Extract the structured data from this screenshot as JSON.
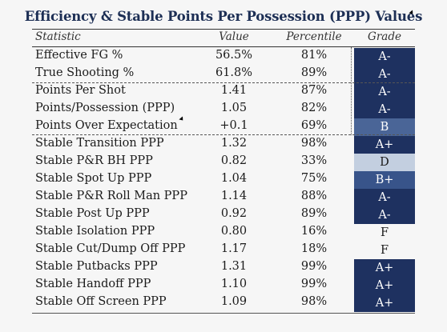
{
  "title": "Efficiency & Stable Points Per Possession (PPP) Values",
  "headers": {
    "statistic": "Statistic",
    "value": "Value",
    "percentile": "Percentile",
    "grade": "Grade"
  },
  "colors": {
    "navy": "#1e3160",
    "mid_blue": "#4a6597",
    "light_blue": "#c3cfe0",
    "white": "#f6f6f6"
  },
  "rows": [
    {
      "stat": "Effective FG %",
      "value": "56.5%",
      "percentile": "81%",
      "grade": "A-",
      "color": "#1e3160",
      "text": "#ffffff"
    },
    {
      "stat": "True Shooting %",
      "value": "61.8%",
      "percentile": "89%",
      "grade": "A-",
      "color": "#1e3160",
      "text": "#ffffff"
    },
    {
      "stat": "Points Per Shot",
      "value": "1.41",
      "percentile": "87%",
      "grade": "A-",
      "color": "#1e3160",
      "text": "#ffffff"
    },
    {
      "stat": "Points/Possession (PPP)",
      "value": "1.05",
      "percentile": "82%",
      "grade": "A-",
      "color": "#1e3160",
      "text": "#ffffff"
    },
    {
      "stat": "Points Over Expectation",
      "value": "+0.1",
      "percentile": "69%",
      "grade": "B",
      "color": "#4a6597",
      "text": "#ffffff"
    },
    {
      "stat": "Stable Transition PPP",
      "value": "1.32",
      "percentile": "98%",
      "grade": "A+",
      "color": "#1e3160",
      "text": "#ffffff"
    },
    {
      "stat": "Stable P&R BH PPP",
      "value": "0.82",
      "percentile": "33%",
      "grade": "D",
      "color": "#c3cfe0",
      "text": "#1b1b1b"
    },
    {
      "stat": "Stable Spot Up PPP",
      "value": "1.04",
      "percentile": "75%",
      "grade": "B+",
      "color": "#38548a",
      "text": "#ffffff"
    },
    {
      "stat": "Stable P&R Roll Man PPP",
      "value": "1.14",
      "percentile": "88%",
      "grade": "A-",
      "color": "#1e3160",
      "text": "#ffffff"
    },
    {
      "stat": "Stable Post Up PPP",
      "value": "0.92",
      "percentile": "89%",
      "grade": "A-",
      "color": "#1e3160",
      "text": "#ffffff"
    },
    {
      "stat": "Stable Isolation PPP",
      "value": "0.80",
      "percentile": "16%",
      "grade": "F",
      "color": "#f6f6f6",
      "text": "#1b1b1b"
    },
    {
      "stat": "Stable Cut/Dump Off PPP",
      "value": "1.17",
      "percentile": "18%",
      "grade": "F",
      "color": "#f6f6f6",
      "text": "#1b1b1b"
    },
    {
      "stat": "Stable Putbacks PPP",
      "value": "1.31",
      "percentile": "99%",
      "grade": "A+",
      "color": "#1e3160",
      "text": "#ffffff"
    },
    {
      "stat": "Stable Handoff PPP",
      "value": "1.10",
      "percentile": "99%",
      "grade": "A+",
      "color": "#1e3160",
      "text": "#ffffff"
    },
    {
      "stat": "Stable Off Screen PPP",
      "value": "1.09",
      "percentile": "98%",
      "grade": "A+",
      "color": "#1e3160",
      "text": "#ffffff"
    }
  ]
}
